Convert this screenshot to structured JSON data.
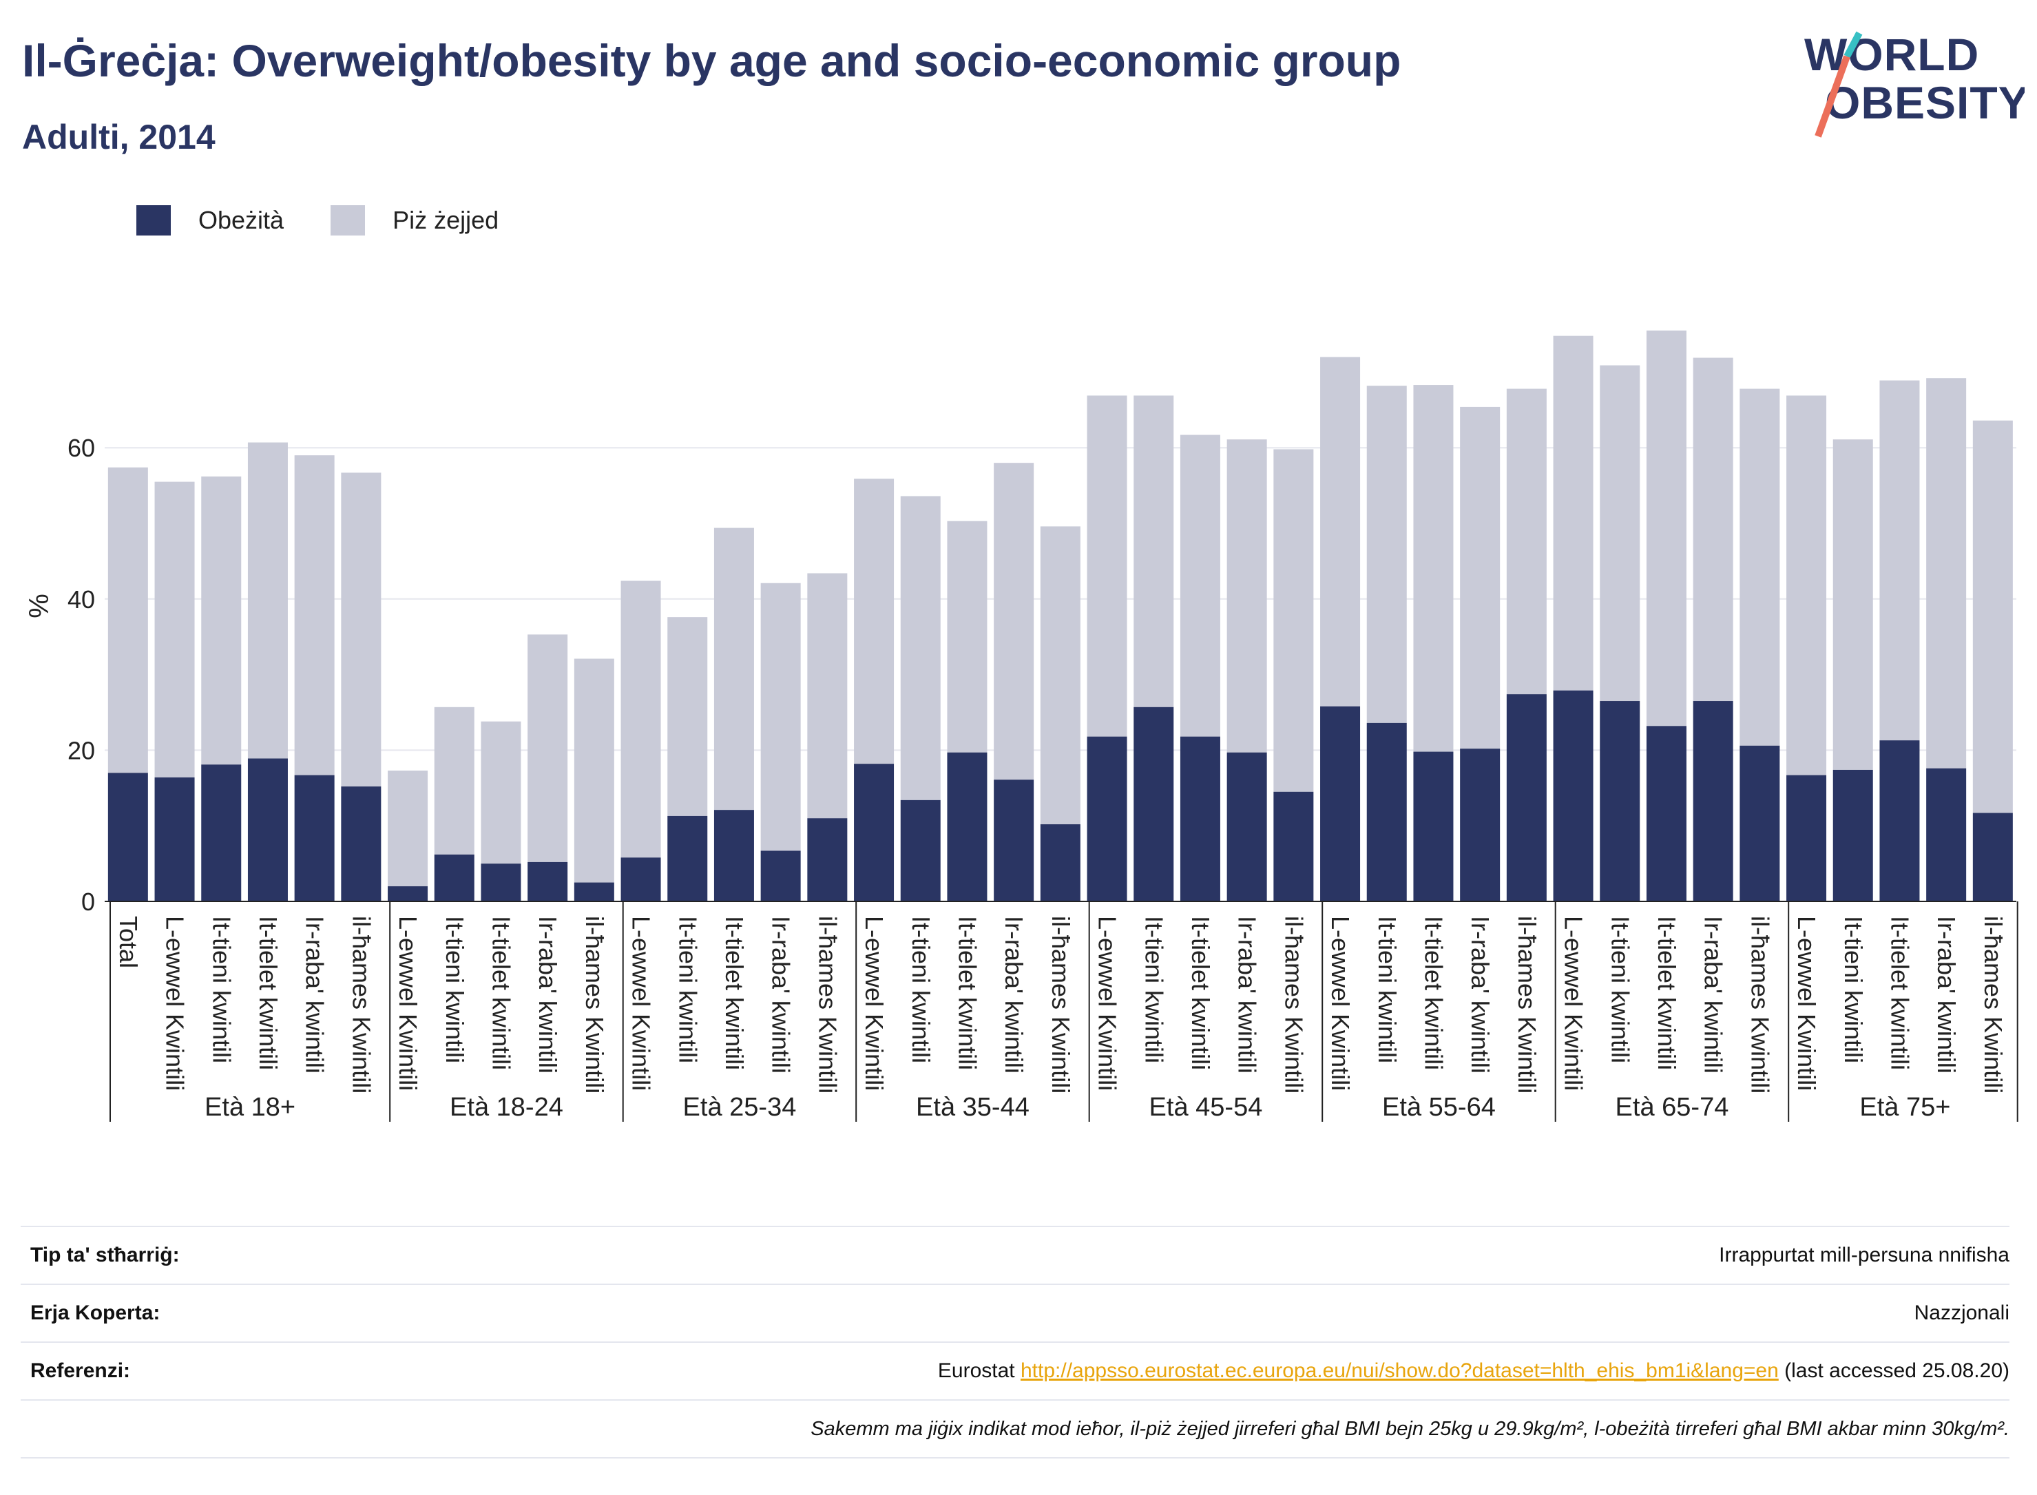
{
  "header": {
    "title": "Il-Ġreċja: Overweight/obesity by age and socio-economic group",
    "subtitle": "Adulti, 2014",
    "logo_text": "WORLD OBESITY"
  },
  "colors": {
    "obesity": "#2a3563",
    "overweight": "#c9cbd8",
    "title": "#2a3563",
    "link": "#e8a40c",
    "logo_teal": "#37c0c4",
    "logo_coral": "#ec6f5a"
  },
  "legend": [
    {
      "label": "Obeżità",
      "color": "#2a3563"
    },
    {
      "label": "Piż żejjed",
      "color": "#c9cbd8"
    }
  ],
  "chart_data": {
    "type": "bar",
    "stacked": true,
    "ylabel": "%",
    "ylim": [
      0,
      77
    ],
    "yticks": [
      0,
      20,
      40,
      60
    ],
    "grid": true,
    "legend_position": "top-left",
    "groups": [
      {
        "label": "Età 18+",
        "categories": [
          "Total",
          "L-ewwel Kwintili",
          "It-tieni kwintili",
          "It-tielet kwintili",
          "Ir-raba' kwintili",
          "il-ħames Kwintili"
        ]
      },
      {
        "label": "Età 18-24",
        "categories": [
          "L-ewwel Kwintili",
          "It-tieni kwintili",
          "It-tielet kwintili",
          "Ir-raba' kwintili",
          "il-ħames Kwintili"
        ]
      },
      {
        "label": "Età 25-34",
        "categories": [
          "L-ewwel Kwintili",
          "It-tieni kwintili",
          "It-tielet kwintili",
          "Ir-raba' kwintili",
          "il-ħames Kwintili"
        ]
      },
      {
        "label": "Età 35-44",
        "categories": [
          "L-ewwel Kwintili",
          "It-tieni kwintili",
          "It-tielet kwintili",
          "Ir-raba' kwintili",
          "il-ħames Kwintili"
        ]
      },
      {
        "label": "Età 45-54",
        "categories": [
          "L-ewwel Kwintili",
          "It-tieni kwintili",
          "It-tielet kwintili",
          "Ir-raba' kwintili",
          "il-ħames Kwintili"
        ]
      },
      {
        "label": "Età 55-64",
        "categories": [
          "L-ewwel Kwintili",
          "It-tieni kwintili",
          "It-tielet kwintili",
          "Ir-raba' kwintili",
          "il-ħames Kwintili"
        ]
      },
      {
        "label": "Età 65-74",
        "categories": [
          "L-ewwel Kwintili",
          "It-tieni kwintili",
          "It-tielet kwintili",
          "Ir-raba' kwintili",
          "il-ħames Kwintili"
        ]
      },
      {
        "label": "Età 75+",
        "categories": [
          "L-ewwel Kwintili",
          "It-tieni kwintili",
          "It-tielet kwintili",
          "Ir-raba' kwintili",
          "il-ħames Kwintili"
        ]
      }
    ],
    "series": [
      {
        "name": "Obeżità",
        "values": [
          17.0,
          16.4,
          18.1,
          18.9,
          16.7,
          15.2,
          2.0,
          6.2,
          5.0,
          5.2,
          2.5,
          5.8,
          11.3,
          12.1,
          6.7,
          11.0,
          18.2,
          13.4,
          19.7,
          16.1,
          10.2,
          21.8,
          25.7,
          21.8,
          19.7,
          14.5,
          25.8,
          23.6,
          19.8,
          20.2,
          27.4,
          27.9,
          26.5,
          23.2,
          26.5,
          20.6,
          16.7,
          17.4,
          21.3,
          17.6,
          11.7
        ]
      },
      {
        "name": "Piż żejjed",
        "values": [
          40.4,
          39.1,
          38.1,
          41.8,
          42.3,
          41.5,
          15.3,
          19.5,
          18.8,
          30.1,
          29.6,
          36.6,
          26.3,
          37.3,
          35.4,
          32.4,
          37.7,
          40.2,
          30.6,
          41.9,
          39.4,
          45.1,
          41.2,
          39.9,
          41.4,
          45.3,
          46.2,
          44.6,
          48.5,
          45.2,
          40.4,
          46.9,
          44.4,
          52.3,
          45.4,
          47.2,
          50.2,
          43.7,
          47.6,
          51.6,
          51.9
        ]
      }
    ]
  },
  "info": {
    "rows": [
      {
        "label": "Tip ta' stħarriġ:",
        "value": "Irrappurtat mill-persuna nnifisha"
      },
      {
        "label": "Erja Koperta:",
        "value": "Nazzjonali"
      }
    ],
    "ref_label": "Referenzi:",
    "ref_prefix": "Eurostat",
    "ref_link": "http://appsso.eurostat.ec.europa.eu/nui/show.do?dataset=hlth_ehis_bm1i&lang=en",
    "ref_suffix": "(last accessed 25.08.20)",
    "note": "Sakemm ma jiġix indikat mod ieħor, il-piż żejjed jirreferi għal BMI bejn 25kg u 29.9kg/m², l-obeżità tirreferi għal BMI akbar minn 30kg/m²."
  }
}
